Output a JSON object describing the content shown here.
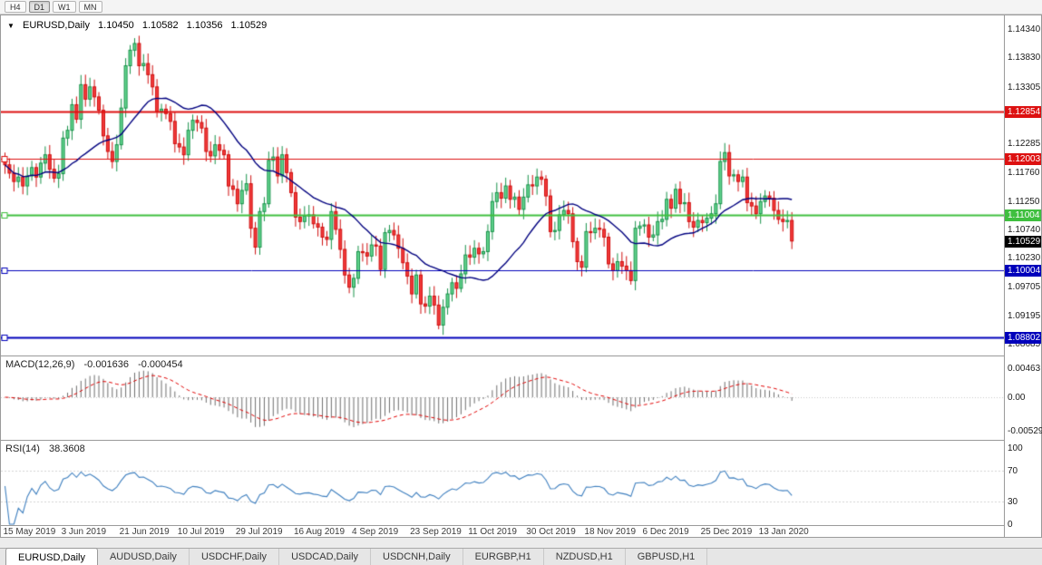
{
  "toolbar": {
    "timeframes": [
      "H4",
      "D1",
      "W1",
      "MN"
    ],
    "active": "D1"
  },
  "chart": {
    "legend": {
      "menu_icon": "▼",
      "symbol": "EURUSD,Daily",
      "open": "1.10450",
      "high": "1.10582",
      "low": "1.10356",
      "close": "1.10529"
    },
    "price_axis_ticks": [
      "1.14340",
      "1.13830",
      "1.13305",
      "1.12285",
      "1.11760",
      "1.11250",
      "1.10740",
      "1.10230",
      "1.09705",
      "1.09195",
      "1.08685"
    ],
    "current_price_badge": {
      "value": 1.10529,
      "label": "1.10529",
      "bg": "#000000"
    }
  },
  "macd_panel": {
    "title": "MACD(12,26,9)",
    "value": "-0.001636",
    "signal_value": "-0.000454",
    "axis": [
      {
        "v": 0.00463,
        "label": "0.00463"
      },
      {
        "v": 0,
        "label": "0.00"
      },
      {
        "v": -0.005299,
        "label": "-0.005299"
      }
    ]
  },
  "rsi_panel": {
    "title": "RSI(14)",
    "value": "38.3608",
    "axis": [
      {
        "v": 100,
        "label": "100"
      },
      {
        "v": 70,
        "label": "70"
      },
      {
        "v": 30,
        "label": "30"
      },
      {
        "v": 0,
        "label": "0"
      }
    ],
    "levels": [
      70,
      30
    ]
  },
  "tabs": [
    {
      "label": "EURUSD,Daily",
      "active": true
    },
    {
      "label": "AUDUSD,Daily",
      "active": false
    },
    {
      "label": "USDCHF,Daily",
      "active": false
    },
    {
      "label": "USDCAD,Daily",
      "active": false
    },
    {
      "label": "USDCNH,Daily",
      "active": false
    },
    {
      "label": "EURGBP,H1",
      "active": false
    },
    {
      "label": "NZDUSD,H1",
      "active": false
    },
    {
      "label": "GBPUSD,H1",
      "active": false
    }
  ],
  "chart_data": {
    "type": "candlestick",
    "symbol": "EURUSD",
    "timeframe": "Daily",
    "title": "EURUSD,Daily",
    "x_labels": [
      "15 May 2019",
      "3 Jun 2019",
      "21 Jun 2019",
      "10 Jul 2019",
      "29 Jul 2019",
      "16 Aug 2019",
      "4 Sep 2019",
      "23 Sep 2019",
      "11 Oct 2019",
      "30 Oct 2019",
      "18 Nov 2019",
      "6 Dec 2019",
      "25 Dec 2019",
      "13 Jan 2020"
    ],
    "x_label_indices": [
      0,
      13,
      26,
      39,
      52,
      65,
      78,
      91,
      104,
      117,
      130,
      143,
      156,
      169
    ],
    "y_axis": {
      "top_tick": 1.1434,
      "bottom_tick": 1.08685
    },
    "open_first": 1.1205,
    "closes": [
      1.119,
      1.1175,
      1.116,
      1.1168,
      1.1152,
      1.117,
      1.1185,
      1.1168,
      1.1193,
      1.1208,
      1.1182,
      1.1166,
      1.1174,
      1.1238,
      1.1252,
      1.1298,
      1.1272,
      1.1334,
      1.1308,
      1.133,
      1.1312,
      1.1288,
      1.1242,
      1.1214,
      1.1196,
      1.1226,
      1.1292,
      1.1368,
      1.1396,
      1.1408,
      1.1368,
      1.1372,
      1.1352,
      1.133,
      1.1286,
      1.129,
      1.1282,
      1.1268,
      1.1228,
      1.1222,
      1.1208,
      1.1252,
      1.127,
      1.1266,
      1.1256,
      1.1214,
      1.1206,
      1.1226,
      1.1216,
      1.1208,
      1.1152,
      1.1146,
      1.112,
      1.1144,
      1.1156,
      1.1076,
      1.1042,
      1.1106,
      1.112,
      1.1198,
      1.1204,
      1.117,
      1.1208,
      1.1176,
      1.114,
      1.1096,
      1.1088,
      1.1098,
      1.11,
      1.1084,
      1.1078,
      1.106,
      1.1056,
      1.1106,
      1.1074,
      1.1038,
      1.0992,
      1.097,
      1.0986,
      1.1034,
      1.1032,
      1.1026,
      1.1046,
      1.1044,
      1.1002,
      1.1068,
      1.1072,
      1.1064,
      1.104,
      1.1014,
      1.099,
      1.0958,
      1.0992,
      1.094,
      1.0936,
      1.0954,
      1.0938,
      1.0902,
      1.0934,
      1.0958,
      1.0978,
      1.0968,
      1.0994,
      1.1028,
      1.1024,
      1.104,
      1.103,
      1.1034,
      1.107,
      1.1124,
      1.114,
      1.113,
      1.1152,
      1.1128,
      1.1132,
      1.111,
      1.1132,
      1.1154,
      1.1152,
      1.1168,
      1.1164,
      1.1134,
      1.107,
      1.1072,
      1.11,
      1.1108,
      1.1102,
      1.1052,
      1.1016,
      1.1006,
      1.107,
      1.1068,
      1.1076,
      1.1074,
      1.106,
      1.1012,
      1.1,
      1.1016,
      1.1008,
      1.1,
      1.0982,
      1.1076,
      1.108,
      1.1082,
      1.106,
      1.1064,
      1.1088,
      1.1092,
      1.1128,
      1.1112,
      1.1146,
      1.112,
      1.1122,
      1.1088,
      1.1078,
      1.109,
      1.1086,
      1.1094,
      1.1102,
      1.112,
      1.1196,
      1.1212,
      1.117,
      1.1172,
      1.116,
      1.1168,
      1.1122,
      1.1116,
      1.1102,
      1.1124,
      1.1134,
      1.113,
      1.1108,
      1.1092,
      1.1088,
      1.109,
      1.1053
    ],
    "hlines": [
      {
        "price": 1.12854,
        "label": "1.12854",
        "color": "#dd1111",
        "width": 2,
        "marker": false
      },
      {
        "price": 1.12003,
        "label": "1.12003",
        "color": "#dd1111",
        "width": 1,
        "marker": true
      },
      {
        "price": 1.11004,
        "label": "1.11004",
        "color": "#3fbf3f",
        "width": 2,
        "marker": true
      },
      {
        "price": 1.10004,
        "label": "1.10004",
        "color": "#0000bb",
        "width": 1,
        "marker": true
      },
      {
        "price": 1.08802,
        "label": "1.08802",
        "color": "#0000bb",
        "width": 2,
        "marker": true
      }
    ],
    "colors": {
      "up_fill": "#63d48e",
      "up_stroke": "#18924a",
      "down_fill": "#f23b3b",
      "down_stroke": "#cf0e0e",
      "ma": "#00007f",
      "macd_hist": "#6e6e6e",
      "macd_signal": "#e00000",
      "rsi": "#3e7fbf",
      "grid_dotted": "#c8c8c8"
    },
    "indicators": {
      "ma_period": 20,
      "macd": {
        "fast": 12,
        "slow": 26,
        "signal": 9
      },
      "rsi_period": 14
    }
  }
}
